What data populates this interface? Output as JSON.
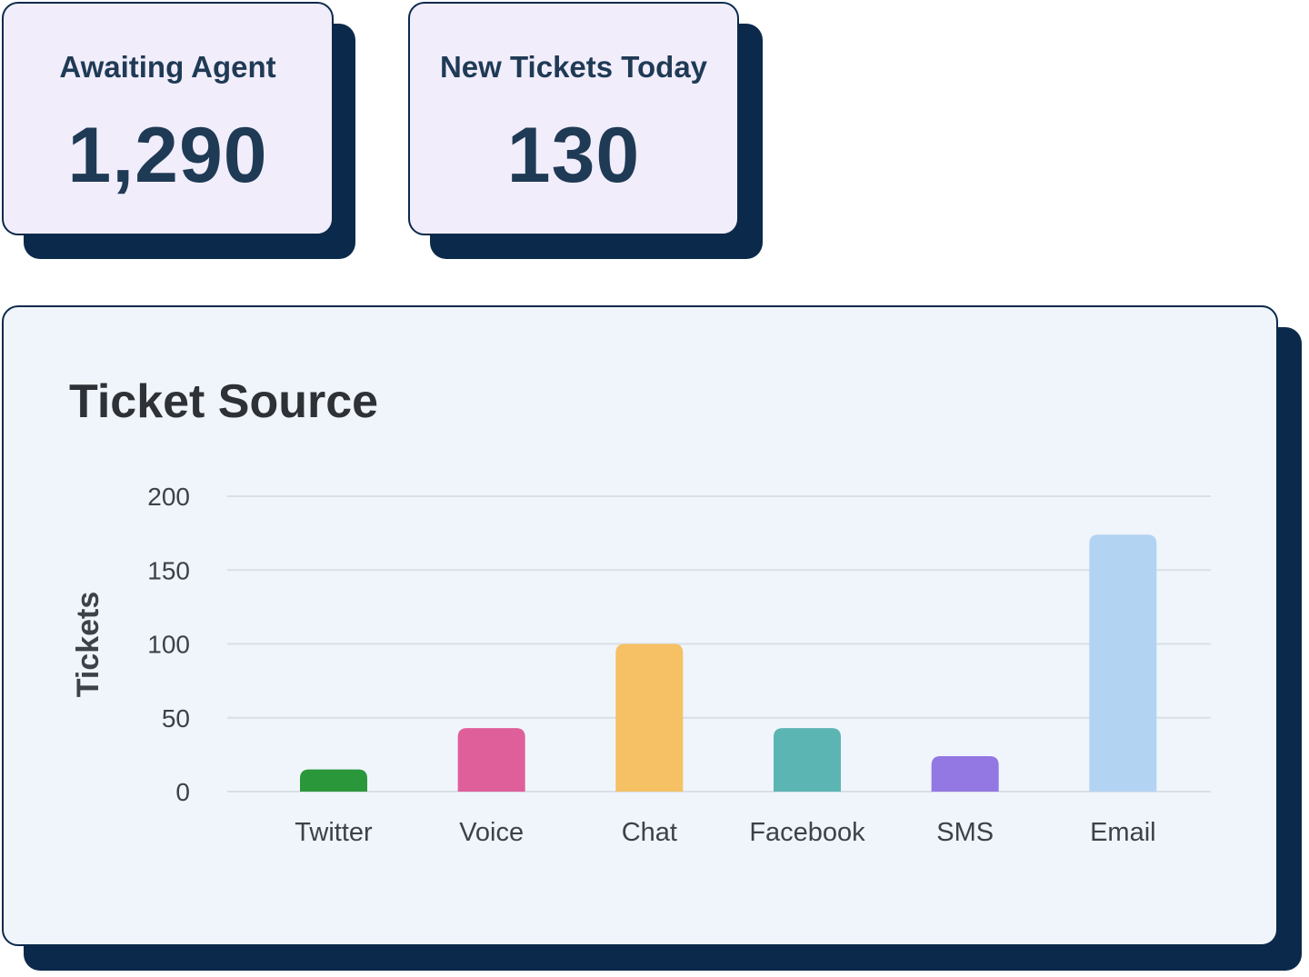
{
  "stats": {
    "awaiting_agent": {
      "label": "Awaiting Agent",
      "value": "1,290"
    },
    "new_tickets_today": {
      "label": "New Tickets Today",
      "value": "130"
    }
  },
  "colors": {
    "card_border": "#0b2a4b",
    "stat_card_bg": "#f1edfb",
    "chart_card_bg": "#f0f5fc",
    "gridline": "#d9dfe6"
  },
  "chart_data": {
    "type": "bar",
    "title": "Ticket Source",
    "xlabel": "",
    "ylabel": "Tickets",
    "categories": [
      "Twitter",
      "Voice",
      "Chat",
      "Facebook",
      "SMS",
      "Email"
    ],
    "values": [
      15,
      43,
      100,
      43,
      24,
      174
    ],
    "bar_colors": [
      "#2a973b",
      "#df5f9a",
      "#f6c064",
      "#5bb5b3",
      "#9377e3",
      "#b3d3f3"
    ],
    "ylim": [
      0,
      200
    ],
    "yticks": [
      "0",
      "50",
      "100",
      "150",
      "200"
    ],
    "grid": true,
    "legend": "none"
  }
}
